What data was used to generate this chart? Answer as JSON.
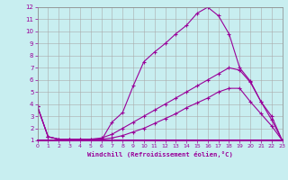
{
  "xlabel": "Windchill (Refroidissement éolien,°C)",
  "bg_color": "#c8eef0",
  "line_color": "#990099",
  "xlim": [
    0,
    23
  ],
  "ylim": [
    1,
    12
  ],
  "xticks": [
    0,
    1,
    2,
    3,
    4,
    5,
    6,
    7,
    8,
    9,
    10,
    11,
    12,
    13,
    14,
    15,
    16,
    17,
    18,
    19,
    20,
    21,
    22,
    23
  ],
  "yticks": [
    1,
    2,
    3,
    4,
    5,
    6,
    7,
    8,
    9,
    10,
    11,
    12
  ],
  "line1_x": [
    0,
    1,
    2,
    3,
    4,
    5,
    6,
    7,
    8,
    9,
    10,
    11,
    12,
    13,
    14,
    15,
    16,
    17,
    18,
    19,
    20,
    21,
    22,
    23
  ],
  "line1_y": [
    3.8,
    1.3,
    1.1,
    1.1,
    1.1,
    1.0,
    1.0,
    2.5,
    3.3,
    5.5,
    7.5,
    8.3,
    9.0,
    9.8,
    10.5,
    11.5,
    12.0,
    11.3,
    9.8,
    7.0,
    5.9,
    4.2,
    2.7,
    1.0
  ],
  "line2_x": [
    0,
    1,
    2,
    3,
    4,
    5,
    6,
    7,
    8,
    9,
    10,
    11,
    12,
    13,
    14,
    15,
    16,
    17,
    18,
    19,
    20,
    21,
    22,
    23
  ],
  "line2_y": [
    3.8,
    1.3,
    1.1,
    1.1,
    1.1,
    1.1,
    1.2,
    1.5,
    2.0,
    2.5,
    3.0,
    3.5,
    4.0,
    4.5,
    5.0,
    5.5,
    6.0,
    6.5,
    7.0,
    6.8,
    5.8,
    4.2,
    3.0,
    1.0
  ],
  "line3_x": [
    0,
    1,
    2,
    3,
    4,
    5,
    6,
    7,
    8,
    9,
    10,
    11,
    12,
    13,
    14,
    15,
    16,
    17,
    18,
    19,
    20,
    21,
    22,
    23
  ],
  "line3_y": [
    3.8,
    1.3,
    1.1,
    1.1,
    1.1,
    1.1,
    1.1,
    1.2,
    1.4,
    1.7,
    2.0,
    2.4,
    2.8,
    3.2,
    3.7,
    4.1,
    4.5,
    5.0,
    5.3,
    5.3,
    4.2,
    3.2,
    2.2,
    1.0
  ]
}
